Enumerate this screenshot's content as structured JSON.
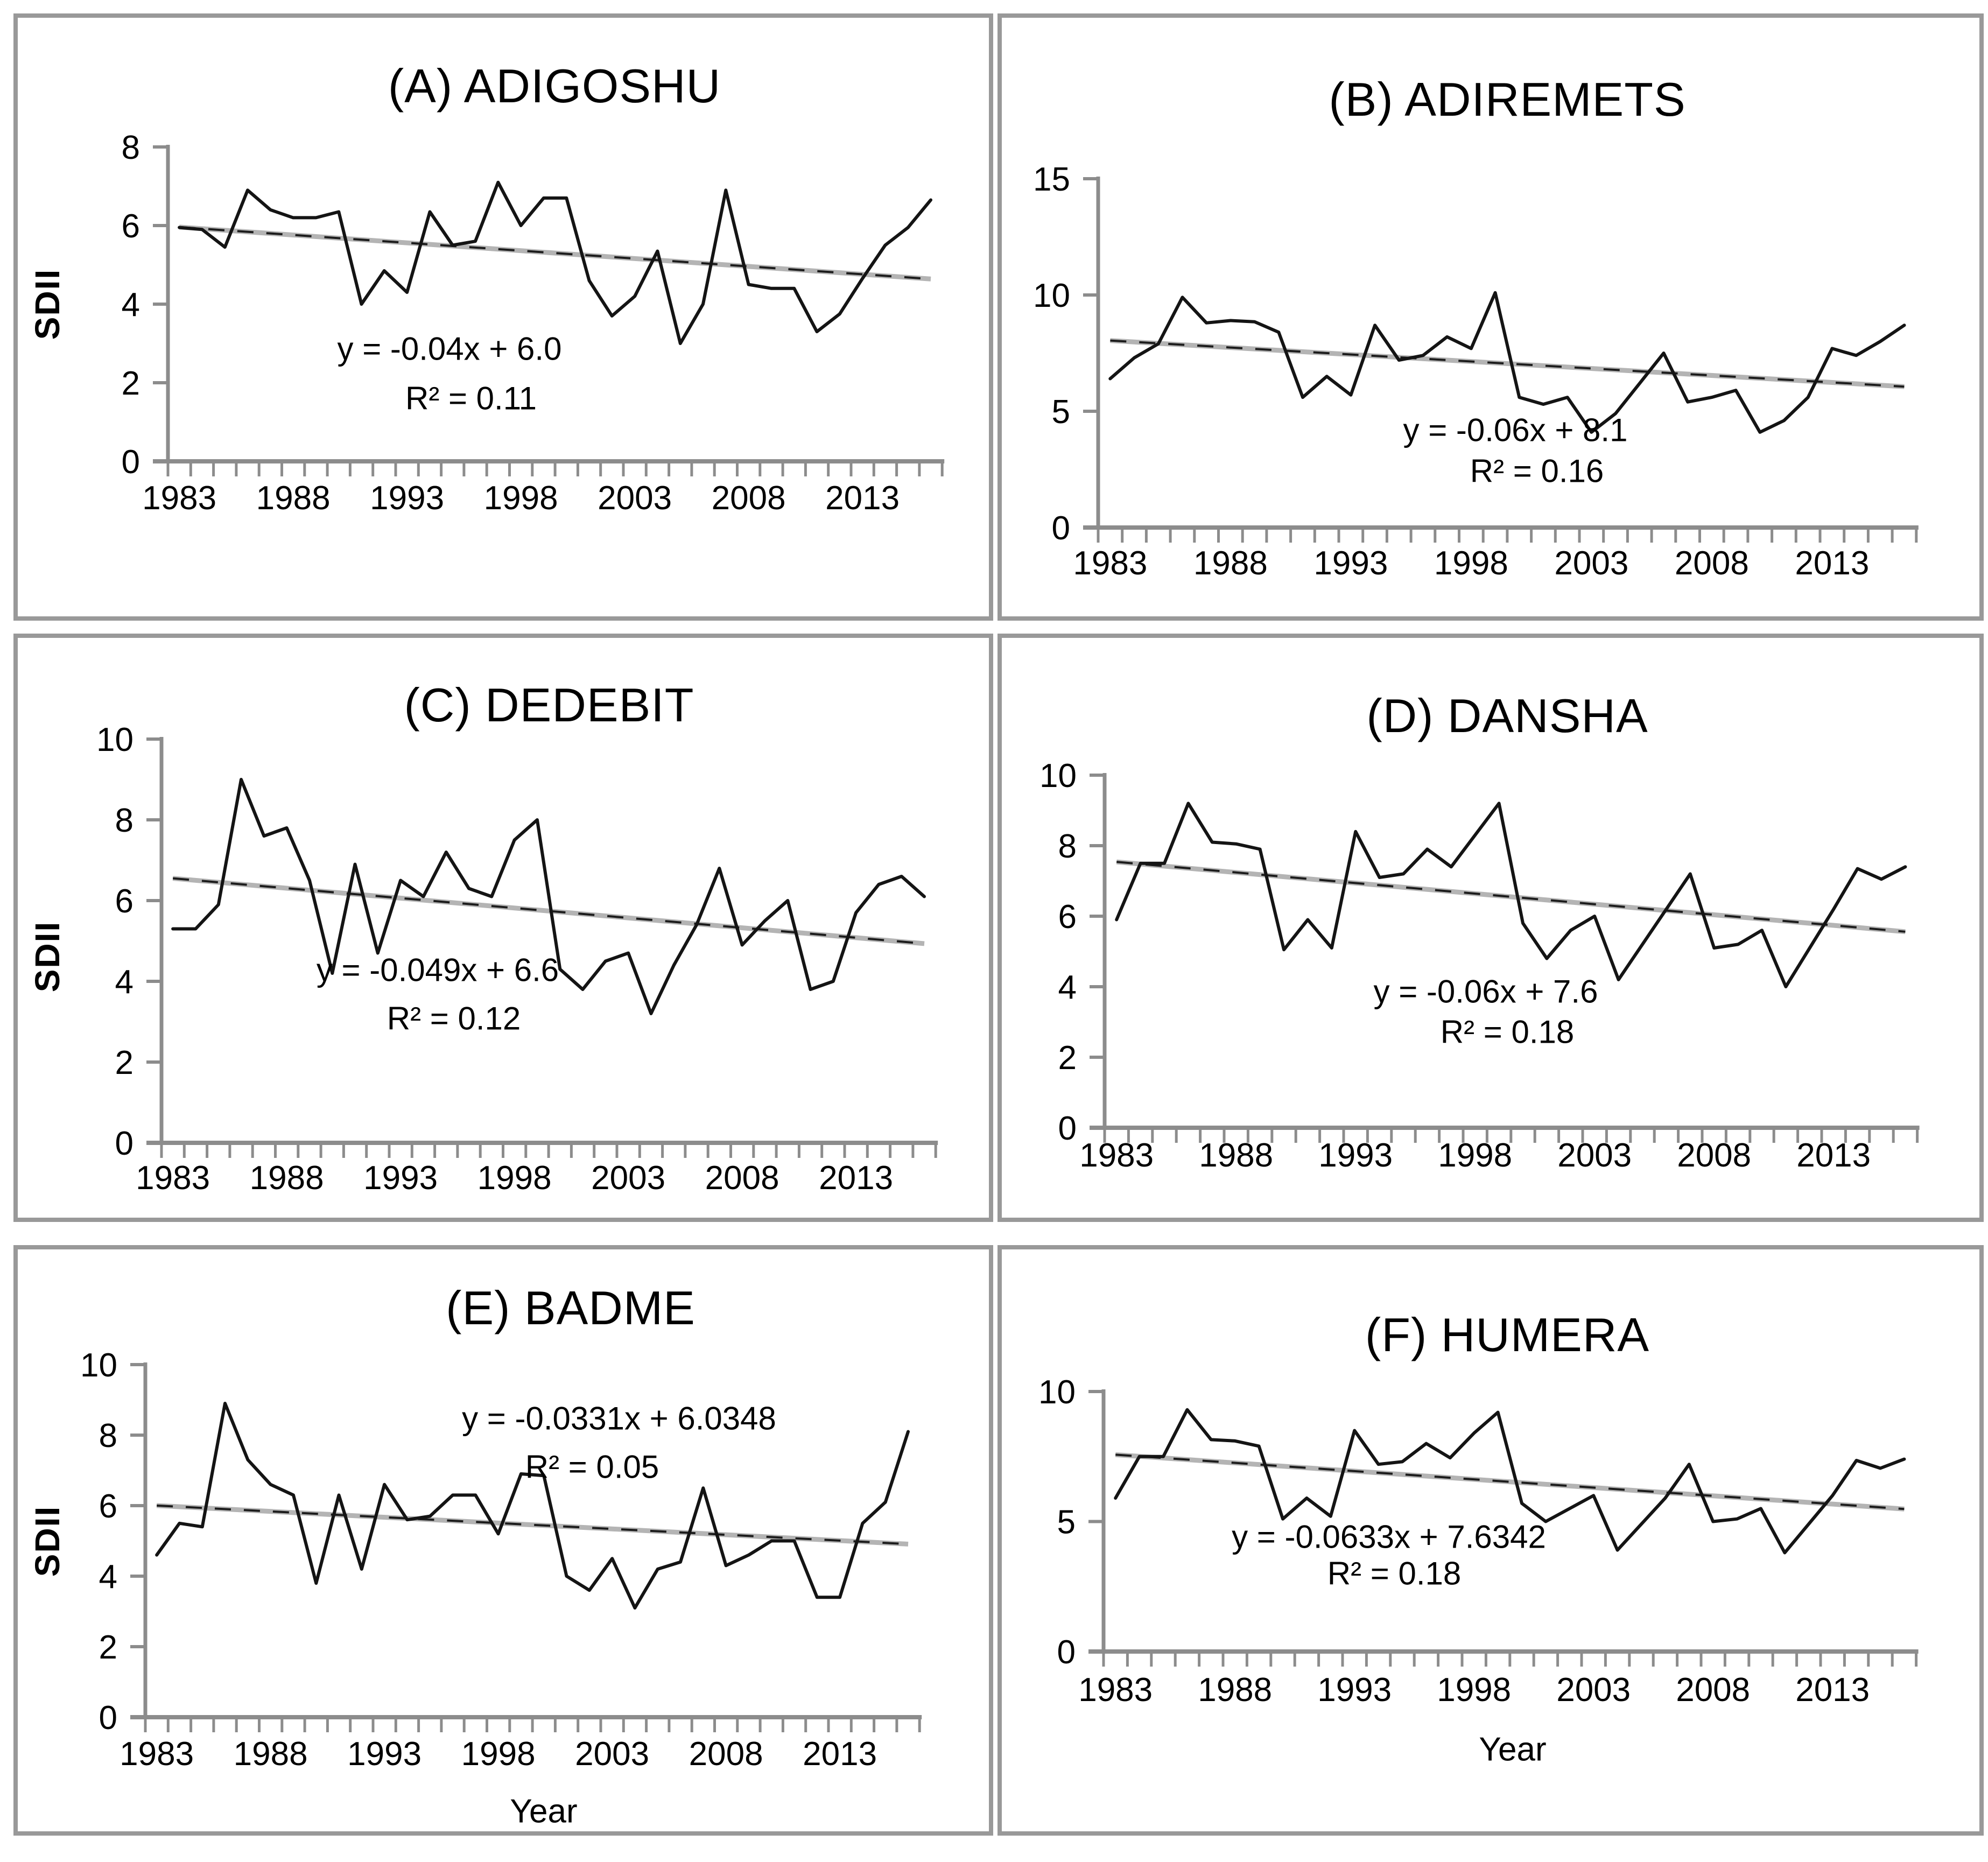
{
  "chart_data": [
    {
      "id": "A",
      "type": "line",
      "title": "(A) ADIGOSHU",
      "ylabel": "SDII",
      "xlabel": "",
      "ylim": [
        0,
        8
      ],
      "yticks": [
        0,
        2,
        4,
        6,
        8
      ],
      "xticks": [
        1983,
        1988,
        1993,
        1998,
        2003,
        2008,
        2013
      ],
      "years_start": 1983,
      "years_end": 2016,
      "grid": false,
      "legend": "none",
      "values": [
        5.95,
        5.9,
        5.45,
        6.9,
        6.4,
        6.2,
        6.2,
        6.35,
        4.0,
        4.85,
        4.3,
        6.35,
        5.5,
        5.6,
        7.1,
        6.0,
        6.7,
        6.7,
        4.6,
        3.7,
        4.2,
        5.35,
        3.0,
        4.0,
        6.9,
        4.5,
        4.4,
        4.4,
        3.3,
        3.75,
        4.65,
        5.5,
        5.95,
        6.65
      ],
      "trend": {
        "slope": -0.04,
        "intercept": 6.0,
        "label": "y = -0.04x + 6.0",
        "r2_label": "R² = 0.11"
      }
    },
    {
      "id": "B",
      "type": "line",
      "title": "(B) ADIREMETS",
      "ylabel": "",
      "xlabel": "",
      "ylim": [
        0,
        15
      ],
      "yticks": [
        0,
        5,
        10,
        15
      ],
      "xticks": [
        1983,
        1988,
        1993,
        1998,
        2003,
        2008,
        2013
      ],
      "years_start": 1983,
      "years_end": 2016,
      "grid": false,
      "legend": "none",
      "values": [
        6.4,
        7.3,
        7.9,
        9.9,
        8.8,
        8.9,
        8.85,
        8.4,
        5.6,
        6.5,
        5.7,
        8.7,
        7.2,
        7.4,
        8.2,
        7.7,
        10.1,
        5.6,
        5.3,
        5.6,
        4.1,
        4.9,
        6.2,
        7.5,
        5.4,
        5.6,
        5.9,
        4.1,
        4.6,
        5.6,
        7.7,
        7.4,
        8.0,
        8.7
      ],
      "trend": {
        "slope": -0.06,
        "intercept": 8.1,
        "label": "y = -0.06x + 8.1",
        "r2_label": "R² = 0.16"
      }
    },
    {
      "id": "C",
      "type": "line",
      "title": "(C) DEDEBIT",
      "ylabel": "SDII",
      "xlabel": "",
      "ylim": [
        0,
        10
      ],
      "yticks": [
        0,
        2,
        4,
        6,
        8,
        10
      ],
      "xticks": [
        1983,
        1988,
        1993,
        1998,
        2003,
        2008,
        2013
      ],
      "years_start": 1983,
      "years_end": 2016,
      "grid": false,
      "legend": "none",
      "values": [
        5.3,
        5.3,
        5.9,
        9.0,
        7.6,
        7.8,
        6.5,
        4.2,
        6.9,
        4.7,
        6.5,
        6.1,
        7.2,
        6.3,
        6.1,
        7.5,
        8.0,
        4.3,
        3.8,
        4.5,
        4.7,
        3.2,
        4.4,
        5.4,
        6.8,
        4.9,
        5.5,
        6.0,
        3.8,
        4.0,
        5.7,
        6.4,
        6.6,
        6.1
      ],
      "trend": {
        "slope": -0.049,
        "intercept": 6.6,
        "label": "y = -0.049x + 6.6",
        "r2_label": "R² = 0.12"
      }
    },
    {
      "id": "D",
      "type": "line",
      "title": "(D) DANSHA",
      "ylabel": "",
      "xlabel": "",
      "ylim": [
        0,
        10
      ],
      "yticks": [
        0,
        2,
        4,
        6,
        8,
        10
      ],
      "xticks": [
        1983,
        1988,
        1993,
        1998,
        2003,
        2008,
        2013
      ],
      "years_start": 1983,
      "years_end": 2016,
      "grid": false,
      "legend": "none",
      "values": [
        5.9,
        7.5,
        7.5,
        9.2,
        8.1,
        8.05,
        7.9,
        5.05,
        5.9,
        5.1,
        8.4,
        7.1,
        7.2,
        7.9,
        7.4,
        8.3,
        9.2,
        5.8,
        4.8,
        5.6,
        6.0,
        4.2,
        5.2,
        6.2,
        7.2,
        5.1,
        5.2,
        5.6,
        4.0,
        5.1,
        6.2,
        7.35,
        7.05,
        7.4
      ],
      "trend": {
        "slope": -0.06,
        "intercept": 7.6,
        "label": "y = -0.06x + 7.6",
        "r2_label": "R² = 0.18"
      }
    },
    {
      "id": "E",
      "type": "line",
      "title": "(E) BADME",
      "ylabel": "SDII",
      "xlabel": "Year",
      "ylim": [
        0,
        10
      ],
      "yticks": [
        0,
        2,
        4,
        6,
        8,
        10
      ],
      "xticks": [
        1983,
        1988,
        1993,
        1998,
        2003,
        2008,
        2013
      ],
      "years_start": 1983,
      "years_end": 2016,
      "grid": false,
      "legend": "none",
      "values": [
        4.6,
        5.5,
        5.4,
        8.9,
        7.3,
        6.6,
        6.3,
        3.8,
        6.3,
        4.2,
        6.6,
        5.6,
        5.7,
        6.3,
        6.3,
        5.2,
        6.9,
        6.85,
        4.0,
        3.6,
        4.5,
        3.1,
        4.2,
        4.4,
        6.5,
        4.3,
        4.6,
        5.0,
        5.0,
        3.4,
        3.4,
        5.5,
        6.1,
        8.1
      ],
      "trend": {
        "slope": -0.0331,
        "intercept": 6.0348,
        "label": "y = -0.0331x + 6.0348",
        "r2_label": "R² = 0.05"
      }
    },
    {
      "id": "F",
      "type": "line",
      "title": "(F) HUMERA",
      "ylabel": "",
      "xlabel": "Year",
      "ylim": [
        0,
        10
      ],
      "yticks": [
        0,
        5,
        10
      ],
      "xticks": [
        1983,
        1988,
        1993,
        1998,
        2003,
        2008,
        2013
      ],
      "years_start": 1983,
      "years_end": 2016,
      "grid": false,
      "legend": "none",
      "values": [
        5.9,
        7.5,
        7.5,
        9.3,
        8.15,
        8.1,
        7.9,
        5.1,
        5.9,
        5.2,
        8.5,
        7.2,
        7.3,
        8.0,
        7.45,
        8.4,
        9.2,
        5.7,
        5.0,
        5.5,
        6.0,
        3.9,
        4.9,
        5.9,
        7.2,
        5.0,
        5.1,
        5.5,
        3.8,
        4.9,
        6.0,
        7.35,
        7.05,
        7.4
      ],
      "trend": {
        "slope": -0.0633,
        "intercept": 7.6342,
        "label": "y = -0.0633x + 7.6342",
        "r2_label": "R² = 0.18"
      }
    }
  ],
  "colors": {
    "series": "#141414",
    "trend_gray": "#b4b4b4",
    "trend_dash": "#1c1c1c",
    "axis": "#8c8c8c",
    "panel_border": "#999999",
    "text": "#000000"
  }
}
